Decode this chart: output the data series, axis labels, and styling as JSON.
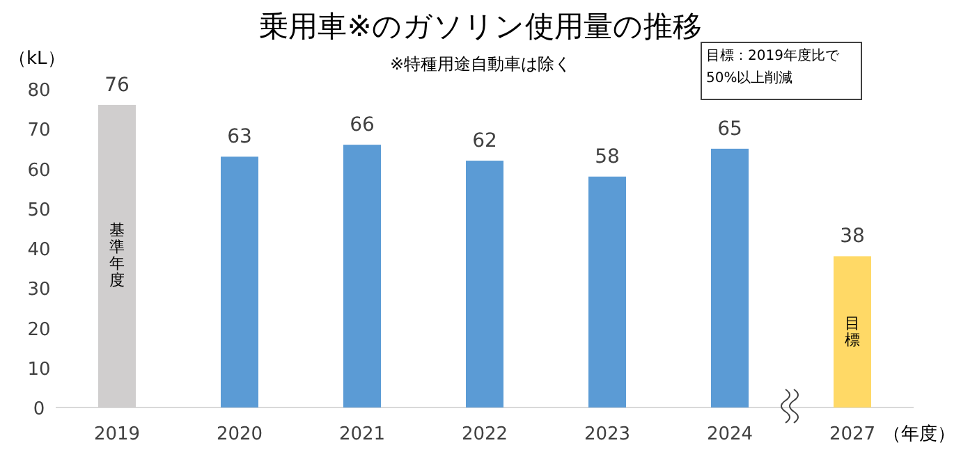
{
  "chart_data": {
    "type": "bar",
    "title": "乗用車※のガソリン使用量の推移",
    "subtitle": "※特種用途自動車は除く",
    "ylabel": "（kL）",
    "xlabel": "（年度）",
    "categories": [
      "2019",
      "2020",
      "2021",
      "2022",
      "2023",
      "2024",
      "2027"
    ],
    "values": [
      76,
      63,
      66,
      62,
      58,
      65,
      38
    ],
    "colors": [
      "#d0cece",
      "#5b9bd5",
      "#5b9bd5",
      "#5b9bd5",
      "#5b9bd5",
      "#5b9bd5",
      "#ffd966"
    ],
    "data_labels": true,
    "ylim": [
      0,
      80
    ],
    "yticks": [
      0,
      10,
      20,
      30,
      40,
      50,
      60,
      70,
      80
    ],
    "grid": false,
    "annotations": [
      "基準年度",
      "目標",
      "目標：2019年度比で50%以上削減"
    ]
  }
}
